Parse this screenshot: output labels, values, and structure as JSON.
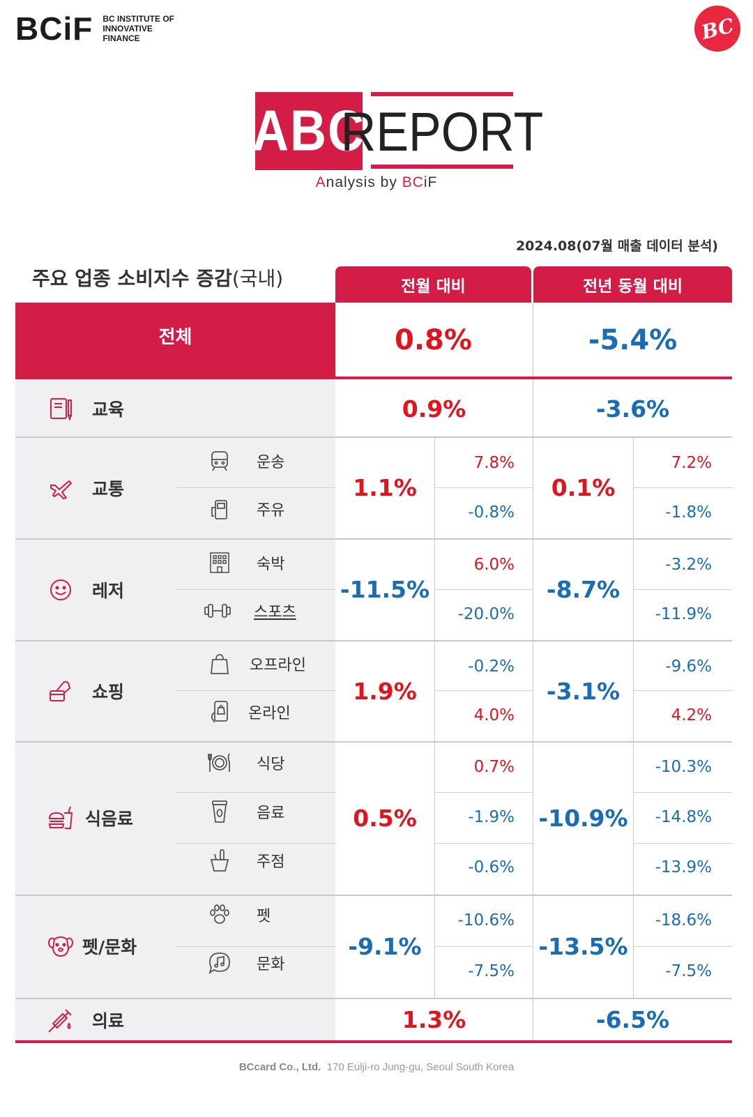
{
  "header": {
    "bcif_logo": "BCiF",
    "bcif_sub": [
      "BC INSTITUTE OF",
      "INNOVATIVE",
      "FINANCE"
    ],
    "bc_badge": "BC",
    "abc": "ABC",
    "report": "REPORT",
    "analysis_prefix": "A",
    "analysis_mid": "nalysis by ",
    "analysis_bc": "BC",
    "analysis_suffix": "iF"
  },
  "date_note": "2024.08(07월 매출 데이터 분석)",
  "table": {
    "title": "주요 업종 소비지수 증감",
    "title_suffix": "(국내)",
    "col_mom": "전월 대비",
    "col_yoy": "전년 동월 대비",
    "total": {
      "label": "전체",
      "mom": "0.8%",
      "yoy": "-5.4%"
    },
    "categories": [
      {
        "label": "교육",
        "icon": "book-icon",
        "mom": "0.9%",
        "yoy": "-3.6%",
        "subs": []
      },
      {
        "label": "교통",
        "icon": "airplane-icon",
        "mom": "1.1%",
        "yoy": "0.1%",
        "subs": [
          {
            "label": "운송",
            "icon": "train-icon",
            "mom": "7.8%",
            "yoy": "7.2%"
          },
          {
            "label": "주유",
            "icon": "fuel-pump-icon",
            "mom": "-0.8%",
            "yoy": "-1.8%"
          }
        ]
      },
      {
        "label": "레저",
        "icon": "smiley-icon",
        "mom": "-11.5%",
        "yoy": "-8.7%",
        "subs": [
          {
            "label": "숙박",
            "icon": "hotel-icon",
            "mom": "6.0%",
            "yoy": "-3.2%"
          },
          {
            "label": "스포츠",
            "icon": "dumbbell-icon",
            "mom": "-20.0%",
            "yoy": "-11.9%"
          }
        ]
      },
      {
        "label": "쇼핑",
        "icon": "card-payment-icon",
        "mom": "1.9%",
        "yoy": "-3.1%",
        "subs": [
          {
            "label": "오프라인",
            "icon": "shopping-bag-icon",
            "mom": "-0.2%",
            "yoy": "-9.6%"
          },
          {
            "label": "온라인",
            "icon": "mobile-shop-icon",
            "mom": "4.0%",
            "yoy": "4.2%"
          }
        ]
      },
      {
        "label": "식음료",
        "icon": "burger-drink-icon",
        "mom": "0.5%",
        "yoy": "-10.9%",
        "subs": [
          {
            "label": "식당",
            "icon": "plate-cutlery-icon",
            "mom": "0.7%",
            "yoy": "-10.3%"
          },
          {
            "label": "음료",
            "icon": "coffee-cup-icon",
            "mom": "-1.9%",
            "yoy": "-14.8%"
          },
          {
            "label": "주점",
            "icon": "wine-bucket-icon",
            "mom": "-0.6%",
            "yoy": "-13.9%"
          }
        ]
      },
      {
        "label": "펫/문화",
        "icon": "dog-icon",
        "mom": "-9.1%",
        "yoy": "-13.5%",
        "subs": [
          {
            "label": "펫",
            "icon": "paw-icon",
            "mom": "-10.6%",
            "yoy": "-18.6%"
          },
          {
            "label": "문화",
            "icon": "music-chat-icon",
            "mom": "-7.5%",
            "yoy": "-7.5%"
          }
        ]
      },
      {
        "label": "의료",
        "icon": "syringe-icon",
        "mom": "1.3%",
        "yoy": "-6.5%",
        "subs": []
      }
    ]
  },
  "footer": {
    "company": "BCcard Co., Ltd.",
    "address": "170 Eulji-ro Jung-gu, Seoul South Korea"
  },
  "colors": {
    "brand_red": "#d31c46",
    "positive": "#e0141e",
    "negative": "#1a6db5"
  }
}
